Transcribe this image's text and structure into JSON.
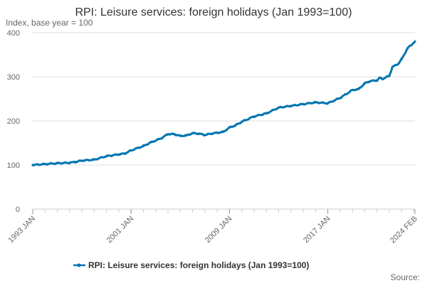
{
  "chart_data": {
    "type": "line",
    "title": "RPI: Leisure services: foreign holidays (Jan 1993=100)",
    "ylabel": "Index, base year = 100",
    "ylim": [
      0,
      400
    ],
    "yticks": [
      0,
      100,
      200,
      300,
      400
    ],
    "xlim": [
      "1993-01",
      "2024-02"
    ],
    "xtick_labels": [
      "1993 JAN",
      "2001 JAN",
      "2009 JAN",
      "2017 JAN",
      "2024 FEB"
    ],
    "grid": true,
    "legend_position": "bottom",
    "series": [
      {
        "name": "RPI: Leisure services: foreign holidays (Jan 1993=100)",
        "color": "#0075b0",
        "points": [
          [
            "1993-01",
            100
          ],
          [
            "1994-01",
            102
          ],
          [
            "1995-01",
            104
          ],
          [
            "1996-01",
            105
          ],
          [
            "1996-07",
            107
          ],
          [
            "1997-01",
            110
          ],
          [
            "1998-01",
            112
          ],
          [
            "1999-01",
            120
          ],
          [
            "2000-01",
            124
          ],
          [
            "2000-07",
            126
          ],
          [
            "2001-01",
            133
          ],
          [
            "2002-01",
            143
          ],
          [
            "2002-09",
            152
          ],
          [
            "2003-06",
            160
          ],
          [
            "2004-01",
            170
          ],
          [
            "2004-07",
            170
          ],
          [
            "2005-01",
            166
          ],
          [
            "2005-07",
            167
          ],
          [
            "2006-01",
            172
          ],
          [
            "2006-07",
            171
          ],
          [
            "2007-01",
            168
          ],
          [
            "2007-07",
            171
          ],
          [
            "2008-01",
            173
          ],
          [
            "2008-07",
            175
          ],
          [
            "2009-01",
            185
          ],
          [
            "2009-07",
            190
          ],
          [
            "2010-01",
            198
          ],
          [
            "2011-01",
            210
          ],
          [
            "2012-01",
            217
          ],
          [
            "2013-01",
            230
          ],
          [
            "2014-01",
            234
          ],
          [
            "2015-01",
            238
          ],
          [
            "2016-01",
            242
          ],
          [
            "2017-01",
            240
          ],
          [
            "2018-01",
            252
          ],
          [
            "2019-01",
            270
          ],
          [
            "2019-07",
            272
          ],
          [
            "2020-01",
            285
          ],
          [
            "2020-06",
            290
          ],
          [
            "2021-01",
            292
          ],
          [
            "2021-04",
            298
          ],
          [
            "2021-06",
            295
          ],
          [
            "2022-01",
            302
          ],
          [
            "2022-04",
            322
          ],
          [
            "2022-10",
            330
          ],
          [
            "2023-01",
            340
          ],
          [
            "2023-07",
            365
          ],
          [
            "2024-02",
            380
          ]
        ]
      }
    ]
  },
  "footer": {
    "source_label": "Source:"
  }
}
